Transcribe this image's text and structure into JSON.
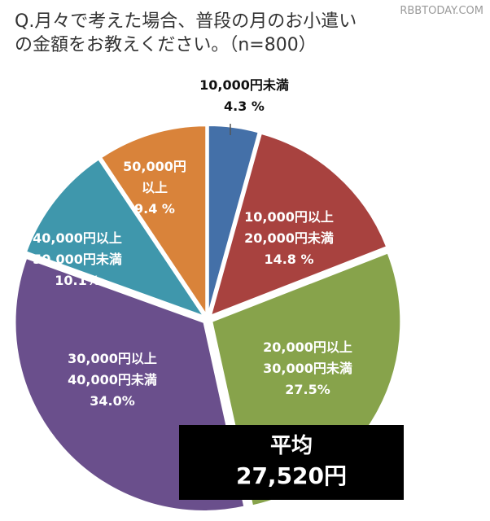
{
  "title_lines": [
    "Q.月々で考えた場合、普段の月のお小遣い",
    "の金額をお教えください。（n=800）"
  ],
  "watermark": "RBBTODAY.COM",
  "average": {
    "label": "平均",
    "value": "27,520円"
  },
  "chart_data": {
    "type": "pie",
    "title": "Q.月々で考えた場合、普段の月のお小遣いの金額をお教えください。（n=800）",
    "slices": [
      {
        "label": [
          "10,000円未満"
        ],
        "percent_text": "4.3 %",
        "value": 4.3,
        "color": "#4470a8"
      },
      {
        "label": [
          "10,000円以上",
          "20,000円未満"
        ],
        "percent_text": "14.8 %",
        "value": 14.8,
        "color": "#a8423f"
      },
      {
        "label": [
          "20,000円以上",
          "30,000円未満"
        ],
        "percent_text": "27.5%",
        "value": 27.5,
        "color": "#87a34b"
      },
      {
        "label": [
          "30,000円以上",
          "40,000円未満"
        ],
        "percent_text": "34.0%",
        "value": 34.0,
        "color": "#6a4f8c"
      },
      {
        "label": [
          "40,000円以上",
          "50,000円未満"
        ],
        "percent_text": "10.1%",
        "value": 10.1,
        "color": "#3f97ac"
      },
      {
        "label": [
          "50,000円",
          "以上"
        ],
        "percent_text": "9.4 %",
        "value": 9.4,
        "color": "#d9833a"
      }
    ]
  }
}
